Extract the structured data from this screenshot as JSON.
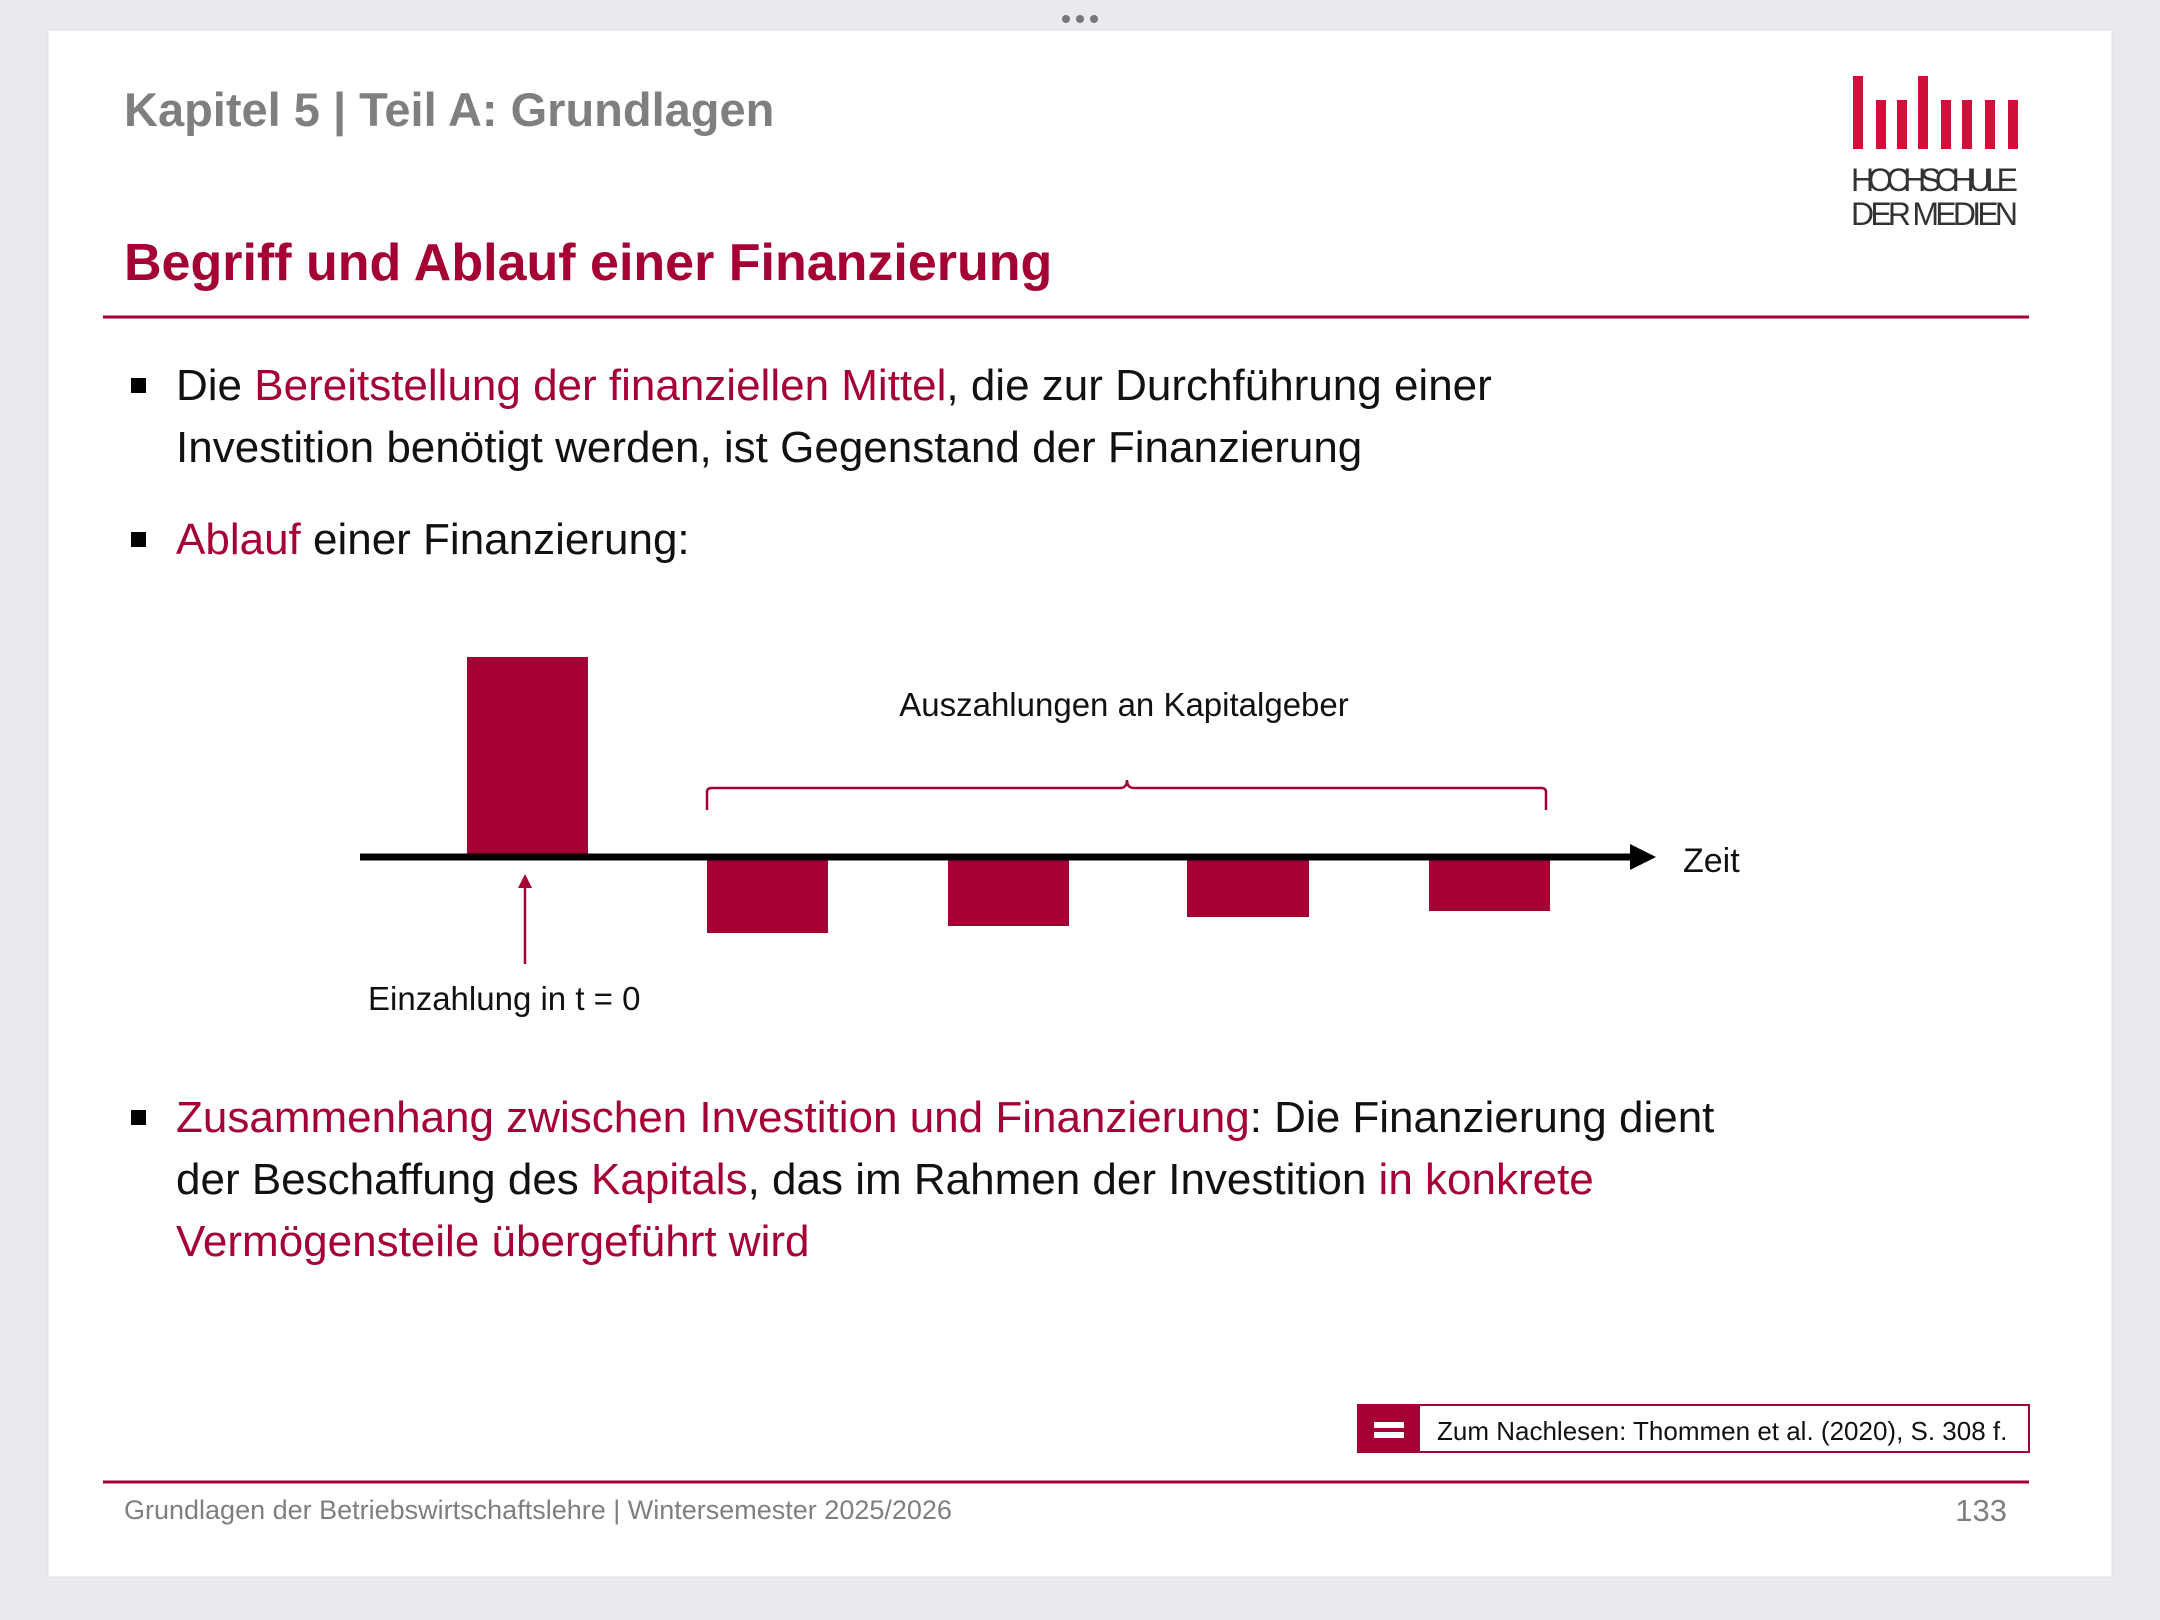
{
  "header": {
    "title": "Kapitel 5 | Teil A: Grundlagen",
    "logo": [
      "HOCHSCHULE",
      "DER MEDIEN"
    ]
  },
  "slide_title": "Begriff und Ablauf einer Finanzierung",
  "bullets": [
    {
      "lines": [
        [
          {
            "text": "Die ",
            "highlight": false
          },
          {
            "text": "Bereitstellung der finanziellen Mittel",
            "highlight": true
          },
          {
            "text": ", die zur Durchführung einer",
            "highlight": false
          }
        ],
        [
          {
            "text": "Investition benötigt werden, ist Gegenstand der Finanzierung",
            "highlight": false
          }
        ]
      ]
    },
    {
      "lines": [
        [
          {
            "text": "Ablauf",
            "highlight": true
          },
          {
            "text": " einer Finanzierung:",
            "highlight": false
          }
        ]
      ]
    },
    {
      "lines": [
        [
          {
            "text": "Zusammenhang zwischen Investition und Finanzierung",
            "highlight": true
          },
          {
            "text": ": Die Finanzierung dient",
            "highlight": false
          }
        ],
        [
          {
            "text": "der Beschaffung des ",
            "highlight": false
          },
          {
            "text": "Kapitals",
            "highlight": true
          },
          {
            "text": ", das im Rahmen der Investition ",
            "highlight": false
          },
          {
            "text": "in konkrete",
            "highlight": true
          }
        ],
        [
          {
            "text": "Vermögensteile übergeführt wird",
            "highlight": true
          }
        ]
      ]
    }
  ],
  "diagram": {
    "brace_label": "Auszahlungen an Kapitalgeber",
    "axis_label": "Zeit",
    "inflow_label": "Einzahlung in t = 0"
  },
  "reference": "Zum Nachlesen: Thommen et al. (2020), S. 308 f.",
  "footer": {
    "text": "Grundlagen der Betriebswirtschaftslehre | Wintersemester 2025/2026",
    "page": 133
  }
}
